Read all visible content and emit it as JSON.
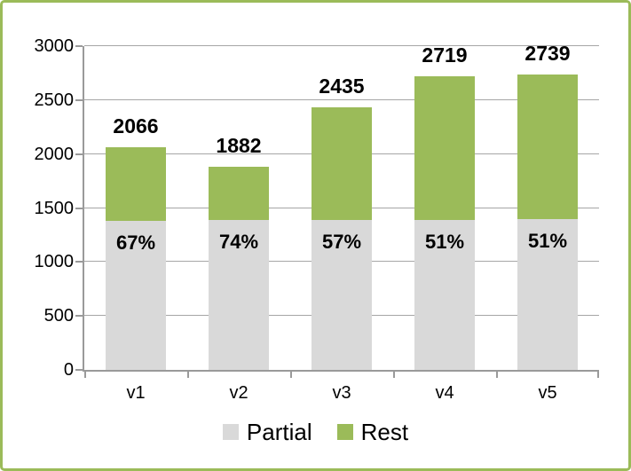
{
  "frame": {
    "border_color": "#9bbb59",
    "background": "#ffffff"
  },
  "chart_data": {
    "type": "bar",
    "stacked": true,
    "categories": [
      "v1",
      "v2",
      "v3",
      "v4",
      "v5"
    ],
    "series": [
      {
        "name": "Partial",
        "color": "#d9d9d9",
        "values": [
          1384,
          1393,
          1388,
          1387,
          1397
        ]
      },
      {
        "name": "Rest",
        "color": "#9bbb59",
        "values": [
          682,
          489,
          1047,
          1332,
          1342
        ]
      }
    ],
    "totals": [
      2066,
      1882,
      2435,
      2719,
      2739
    ],
    "total_labels": [
      "2066",
      "1882",
      "2435",
      "2719",
      "2739"
    ],
    "partial_pct_labels": [
      "67%",
      "74%",
      "57%",
      "51%",
      "51%"
    ],
    "ylim": [
      0,
      3000
    ],
    "ytick_step": 500,
    "ytick_labels": [
      "0",
      "500",
      "1000",
      "1500",
      "2000",
      "2500",
      "3000"
    ],
    "grid": true,
    "gridline_color": "#a6a6a6",
    "axis_color": "#9a9a9a",
    "legend_position": "bottom",
    "legend": [
      {
        "label": "Partial",
        "color": "#d9d9d9"
      },
      {
        "label": "Rest",
        "color": "#9bbb59"
      }
    ]
  }
}
